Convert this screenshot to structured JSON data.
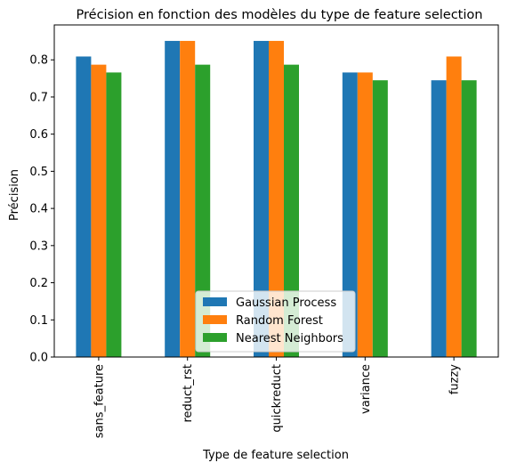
{
  "chart_data": {
    "type": "bar",
    "title": "Précision en fonction des modèles du type de feature selection",
    "xlabel": "Type de feature selection",
    "ylabel": "Précision",
    "categories": [
      "sans_feature",
      "reduct_rst",
      "quickreduct",
      "variance",
      "fuzzy"
    ],
    "series": [
      {
        "name": "Gaussian Process",
        "color": "#1f77b4",
        "values": [
          0.809,
          0.851,
          0.851,
          0.766,
          0.745
        ]
      },
      {
        "name": "Random Forest",
        "color": "#ff7f0e",
        "values": [
          0.787,
          0.851,
          0.851,
          0.766,
          0.809
        ]
      },
      {
        "name": "Nearest Neighbors",
        "color": "#2ca02c",
        "values": [
          0.766,
          0.787,
          0.787,
          0.745,
          0.745
        ]
      }
    ],
    "ylim": [
      0,
      0.894
    ],
    "yticks": [
      "0.0",
      "0.1",
      "0.2",
      "0.3",
      "0.4",
      "0.5",
      "0.6",
      "0.7",
      "0.8"
    ],
    "grid": false,
    "legend_position": "bottom-center"
  }
}
